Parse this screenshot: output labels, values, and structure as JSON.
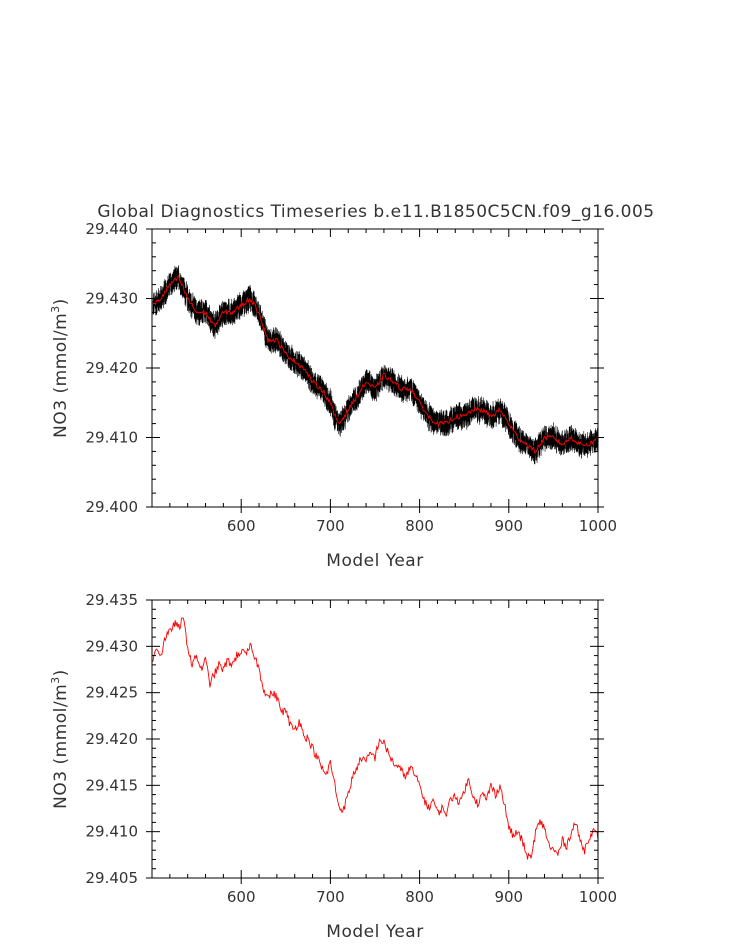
{
  "figure": {
    "title": "Global Diagnostics Timeseries b.e11.B1850C5CN.f09_g16.005"
  },
  "colors": {
    "monthly": "#000000",
    "annual": "#ff0000",
    "axis": "#000000",
    "text": "#333333"
  },
  "chart_data": [
    {
      "type": "line",
      "xlabel": "Model Year",
      "ylabel_main": "NO3 (mmol/m",
      "ylabel_sup": "3",
      "ylabel_end": ")",
      "xlim": [
        500,
        1000
      ],
      "ylim": [
        29.4,
        29.44
      ],
      "xticks": [
        600,
        700,
        800,
        900,
        1000
      ],
      "xtick_labels": [
        "600",
        "700",
        "800",
        "900",
        "1000"
      ],
      "yticks": [
        29.4,
        29.41,
        29.42,
        29.43,
        29.44
      ],
      "ytick_labels": [
        "29.400",
        "29.410",
        "29.420",
        "29.430",
        "29.440"
      ],
      "series": [
        {
          "style": "monthly-noisy",
          "color": "#000000",
          "noise_amplitude": 0.0022,
          "x": [
            501,
            510,
            520,
            530,
            540,
            550,
            560,
            570,
            580,
            590,
            600,
            610,
            620,
            630,
            640,
            650,
            660,
            670,
            680,
            690,
            700,
            705,
            710,
            715,
            720,
            730,
            740,
            750,
            760,
            770,
            780,
            790,
            800,
            810,
            820,
            830,
            840,
            850,
            860,
            870,
            880,
            890,
            900,
            910,
            920,
            930,
            940,
            950,
            960,
            970,
            980,
            990,
            1000
          ],
          "y": [
            29.429,
            29.43,
            29.432,
            29.433,
            29.43,
            29.428,
            29.428,
            29.426,
            29.428,
            29.428,
            29.429,
            29.43,
            29.428,
            29.424,
            29.424,
            29.422,
            29.421,
            29.42,
            29.418,
            29.417,
            29.415,
            29.413,
            29.412,
            29.413,
            29.414,
            29.416,
            29.418,
            29.417,
            29.419,
            29.418,
            29.417,
            29.417,
            29.415,
            29.413,
            29.412,
            29.412,
            29.413,
            29.413,
            29.414,
            29.414,
            29.413,
            29.414,
            29.412,
            29.41,
            29.409,
            29.408,
            29.41,
            29.41,
            29.409,
            29.41,
            29.409,
            29.409,
            29.41
          ]
        },
        {
          "style": "annual",
          "color": "#ff0000",
          "x": [
            501,
            510,
            520,
            530,
            540,
            550,
            560,
            570,
            580,
            590,
            600,
            610,
            620,
            630,
            640,
            650,
            660,
            670,
            680,
            690,
            700,
            705,
            710,
            715,
            720,
            730,
            740,
            750,
            760,
            770,
            780,
            790,
            800,
            810,
            820,
            830,
            840,
            850,
            860,
            870,
            880,
            890,
            900,
            910,
            920,
            930,
            940,
            950,
            960,
            970,
            980,
            990,
            1000
          ],
          "y": [
            29.429,
            29.43,
            29.432,
            29.433,
            29.43,
            29.428,
            29.428,
            29.426,
            29.428,
            29.428,
            29.429,
            29.43,
            29.428,
            29.424,
            29.424,
            29.422,
            29.421,
            29.42,
            29.418,
            29.417,
            29.415,
            29.413,
            29.412,
            29.413,
            29.414,
            29.416,
            29.418,
            29.417,
            29.419,
            29.418,
            29.417,
            29.417,
            29.415,
            29.413,
            29.412,
            29.412,
            29.413,
            29.413,
            29.414,
            29.414,
            29.413,
            29.414,
            29.412,
            29.41,
            29.409,
            29.408,
            29.41,
            29.41,
            29.409,
            29.41,
            29.409,
            29.409,
            29.41
          ]
        }
      ]
    },
    {
      "type": "line",
      "xlabel": "Model Year",
      "ylabel_main": "NO3 (mmol/m",
      "ylabel_sup": "3",
      "ylabel_end": ")",
      "xlim": [
        500,
        1000
      ],
      "ylim": [
        29.405,
        29.435
      ],
      "xticks": [
        600,
        700,
        800,
        900,
        1000
      ],
      "xtick_labels": [
        "600",
        "700",
        "800",
        "900",
        "1000"
      ],
      "yticks": [
        29.405,
        29.41,
        29.415,
        29.42,
        29.425,
        29.43,
        29.435
      ],
      "ytick_labels": [
        "29.405",
        "29.410",
        "29.415",
        "29.420",
        "29.425",
        "29.430",
        "29.435"
      ],
      "series": [
        {
          "style": "annual",
          "color": "#ff0000",
          "x": [
            501,
            505,
            510,
            515,
            520,
            525,
            530,
            535,
            540,
            545,
            550,
            555,
            560,
            565,
            570,
            575,
            580,
            585,
            590,
            595,
            600,
            605,
            610,
            615,
            620,
            625,
            630,
            635,
            640,
            645,
            650,
            655,
            660,
            665,
            670,
            675,
            680,
            685,
            690,
            695,
            700,
            705,
            710,
            715,
            720,
            725,
            730,
            735,
            740,
            745,
            750,
            755,
            760,
            765,
            770,
            775,
            780,
            785,
            790,
            795,
            800,
            805,
            810,
            815,
            820,
            825,
            830,
            835,
            840,
            845,
            850,
            855,
            860,
            865,
            870,
            875,
            880,
            885,
            890,
            895,
            900,
            905,
            910,
            915,
            920,
            925,
            930,
            935,
            940,
            945,
            950,
            955,
            960,
            965,
            970,
            975,
            980,
            985,
            990,
            995,
            1000
          ],
          "y": [
            29.4285,
            29.43,
            29.429,
            29.431,
            29.4315,
            29.4325,
            29.432,
            29.433,
            29.43,
            29.428,
            29.429,
            29.4275,
            29.4285,
            29.426,
            29.427,
            29.428,
            29.4275,
            29.4285,
            29.428,
            29.429,
            29.4295,
            29.429,
            29.43,
            29.429,
            29.4275,
            29.4255,
            29.4245,
            29.425,
            29.4245,
            29.423,
            29.423,
            29.4215,
            29.421,
            29.422,
            29.4205,
            29.42,
            29.419,
            29.418,
            29.417,
            29.416,
            29.4175,
            29.415,
            29.4125,
            29.4125,
            29.414,
            29.416,
            29.417,
            29.418,
            29.4175,
            29.4185,
            29.418,
            29.42,
            29.4195,
            29.4185,
            29.4175,
            29.417,
            29.4165,
            29.416,
            29.417,
            29.416,
            29.415,
            29.4135,
            29.4125,
            29.4135,
            29.412,
            29.4125,
            29.412,
            29.4135,
            29.414,
            29.413,
            29.4145,
            29.4155,
            29.414,
            29.413,
            29.414,
            29.4135,
            29.415,
            29.414,
            29.415,
            29.413,
            29.4105,
            29.4095,
            29.41,
            29.409,
            29.4075,
            29.407,
            29.41,
            29.411,
            29.4105,
            29.4085,
            29.408,
            29.4075,
            29.409,
            29.4085,
            29.41,
            29.411,
            29.409,
            29.408,
            29.4095,
            29.41,
            29.4095
          ]
        }
      ]
    }
  ]
}
